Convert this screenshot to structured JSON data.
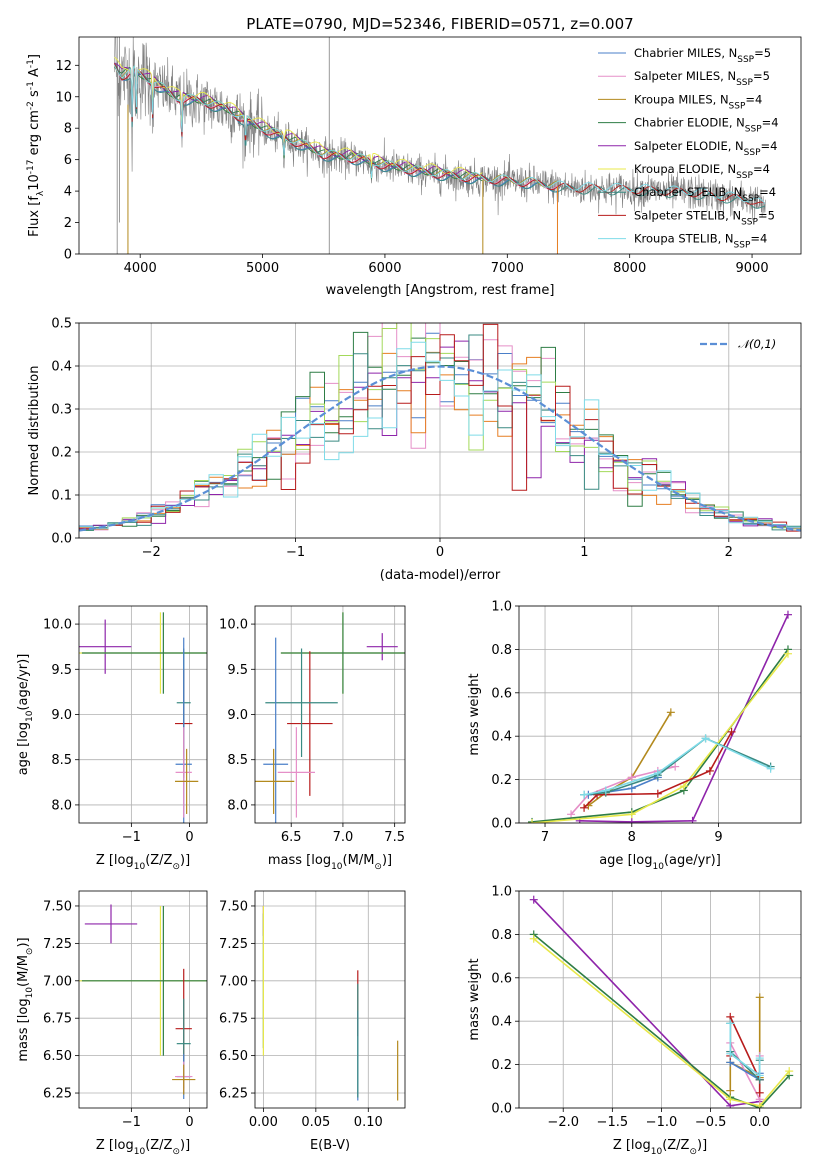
{
  "figure_title": "PLATE=0790, MJD=52346, FIBERID=0571, z=0.007",
  "colors": {
    "Chabrier MILES": "#4a7fc8",
    "Salpeter MILES": "#e58fc8",
    "Kroupa MILES": "#b38a1e",
    "Chabrier ELODIE": "#2e7d45",
    "Salpeter ELODIE": "#8e24aa",
    "Kroupa ELODIE": "#e8e84a",
    "Chabrier STELIB": "#3a8a82",
    "Salpeter STELIB": "#b71c1c",
    "Kroupa STELIB": "#7fdbe8",
    "hist_extra_orange": "#e67e22",
    "hist_extra_green": "#a3d95a",
    "data": "#808080",
    "gauss": "#5b8fd6"
  },
  "chart_data": [
    {
      "id": "spectrum",
      "type": "line",
      "xlabel": "wavelength [Angstrom, rest frame]",
      "ylabel": "Flux [f",
      "ylabel_rest": "10",
      "ylabel_exp": "-17",
      "ylabel_unit": " erg cm",
      "ylabel_unit_exp": "-2",
      "ylabel_s": " s",
      "ylabel_s_exp": "-1",
      "ylabel_A": " A",
      "ylabel_A_exp": "-1",
      "ylabel_close": "]",
      "xlim": [
        3500,
        9400
      ],
      "ylim": [
        0,
        13.8
      ],
      "xticks": [
        4000,
        5000,
        6000,
        7000,
        8000,
        9000
      ],
      "yticks": [
        0,
        2,
        4,
        6,
        8,
        10,
        12
      ],
      "legend_position": "upper right",
      "legend": [
        {
          "label": "Chabrier MILES, N",
          "sub": "SSP",
          "tail": "=5"
        },
        {
          "label": "Salpeter MILES, N",
          "sub": "SSP",
          "tail": "=5"
        },
        {
          "label": "Kroupa MILES, N",
          "sub": "SSP",
          "tail": "=4"
        },
        {
          "label": "Chabrier ELODIE, N",
          "sub": "SSP",
          "tail": "=4"
        },
        {
          "label": "Salpeter ELODIE, N",
          "sub": "SSP",
          "tail": "=4"
        },
        {
          "label": "Kroupa ELODIE, N",
          "sub": "SSP",
          "tail": "=4"
        },
        {
          "label": "Chabrier STELIB, N",
          "sub": "SSP",
          "tail": "=4"
        },
        {
          "label": "Salpeter STELIB, N",
          "sub": "SSP",
          "tail": "=5"
        },
        {
          "label": "Kroupa STELIB, N",
          "sub": "SSP",
          "tail": "=4"
        }
      ],
      "continuum": [
        [
          3790,
          12.0
        ],
        [
          3850,
          11.3
        ],
        [
          3950,
          11.6
        ],
        [
          4100,
          10.9
        ],
        [
          4300,
          9.9
        ],
        [
          4500,
          9.7
        ],
        [
          4700,
          9.2
        ],
        [
          4900,
          8.3
        ],
        [
          5100,
          7.6
        ],
        [
          5300,
          7.0
        ],
        [
          5500,
          6.3
        ],
        [
          5800,
          6.0
        ],
        [
          6000,
          5.6
        ],
        [
          6300,
          5.2
        ],
        [
          6600,
          4.9
        ],
        [
          6900,
          4.7
        ],
        [
          7200,
          4.5
        ],
        [
          7500,
          4.2
        ],
        [
          8000,
          4.1
        ],
        [
          8500,
          3.9
        ],
        [
          9000,
          3.4
        ],
        [
          9100,
          3.0
        ]
      ],
      "model_ranges": {
        "MILES": [
          3790,
          7410
        ],
        "ELODIE": [
          3790,
          6800
        ],
        "STELIB": [
          3790,
          9110
        ]
      }
    },
    {
      "id": "residual_hist",
      "type": "histogram",
      "xlabel": "(data-model)/error",
      "ylabel": "Normed distribution",
      "xlim": [
        -2.5,
        2.5
      ],
      "ylim": [
        0,
        0.5
      ],
      "xticks": [
        -2,
        -1,
        0,
        1,
        2
      ],
      "yticks": [
        0.0,
        0.1,
        0.2,
        0.3,
        0.4,
        0.5
      ],
      "legend_position": "upper right",
      "gauss_label": "𝒩(0,1)",
      "bins": {
        "start": -2.5,
        "width": 0.1,
        "count": 50
      }
    },
    {
      "id": "z_vs_age",
      "type": "errorbar",
      "xlabel": "Z [log",
      "xlabel_sub": "10",
      "xlabel_rest": "(Z/Z",
      "xlabel_sun": "⊙",
      "xlabel_close": ")]",
      "ylabel": "age  [log",
      "ylabel_sub": "10",
      "ylabel_rest": "(age/yr)]",
      "xlim": [
        -1.9,
        0.3
      ],
      "ylim": [
        7.8,
        10.2
      ],
      "xticks": [
        -1,
        0
      ],
      "yticks": [
        8.0,
        8.5,
        9.0,
        9.5,
        10.0
      ],
      "points": [
        {
          "s": "Salpeter ELODIE",
          "x": -1.45,
          "y": 9.75,
          "xerr": 0.45,
          "yerr": 0.3
        },
        {
          "s": "Kroupa ELODIE",
          "x": -0.5,
          "y": 9.68,
          "xerr": 1.4,
          "yerr": 0.45
        },
        {
          "s": "Chabrier ELODIE",
          "x": -0.45,
          "y": 9.68,
          "xerr": 1.4,
          "yerr": 0.45
        },
        {
          "s": "Salpeter STELIB",
          "x": -0.1,
          "y": 8.9,
          "xerr": 0.15,
          "yerr": 0.6
        },
        {
          "s": "Chabrier STELIB",
          "x": -0.1,
          "y": 9.13,
          "xerr": 0.12,
          "yerr": 0.6
        },
        {
          "s": "Chabrier MILES",
          "x": -0.1,
          "y": 8.45,
          "xerr": 0.14,
          "yerr": 1.4
        },
        {
          "s": "Salpeter MILES",
          "x": -0.1,
          "y": 8.36,
          "xerr": 0.14,
          "yerr": 0.5
        },
        {
          "s": "Kroupa MILES",
          "x": -0.05,
          "y": 8.26,
          "xerr": 0.2,
          "yerr": 0.36
        }
      ]
    },
    {
      "id": "mass_vs_age",
      "type": "errorbar",
      "xlabel": "mass [log",
      "xlabel_sub": "10",
      "xlabel_rest": "(M/M",
      "xlabel_sun": "⊙",
      "xlabel_close": ")]",
      "xlim": [
        6.15,
        7.6
      ],
      "ylim": [
        7.8,
        10.2
      ],
      "xticks": [
        6.5,
        7.0,
        7.5
      ],
      "yticks": [
        8.0,
        8.5,
        9.0,
        9.5,
        10.0
      ],
      "points": [
        {
          "s": "Salpeter ELODIE",
          "x": 7.38,
          "y": 9.75,
          "xerr": 0.15,
          "yerr": 0.15
        },
        {
          "s": "Kroupa ELODIE",
          "x": 7.0,
          "y": 9.68,
          "xerr": 0.6,
          "yerr": 0.45
        },
        {
          "s": "Chabrier ELODIE",
          "x": 7.0,
          "y": 9.68,
          "xerr": 0.6,
          "yerr": 0.45
        },
        {
          "s": "Salpeter STELIB",
          "x": 6.68,
          "y": 8.9,
          "xerr": 0.22,
          "yerr": 0.8
        },
        {
          "s": "Chabrier STELIB",
          "x": 6.6,
          "y": 9.13,
          "xerr": 0.35,
          "yerr": 0.6
        },
        {
          "s": "Chabrier MILES",
          "x": 6.35,
          "y": 8.45,
          "xerr": 0.12,
          "yerr": 1.4
        },
        {
          "s": "Salpeter MILES",
          "x": 6.55,
          "y": 8.36,
          "xerr": 0.18,
          "yerr": 0.5
        },
        {
          "s": "Kroupa MILES",
          "x": 6.33,
          "y": 8.26,
          "xerr": 0.2,
          "yerr": 0.36
        }
      ]
    },
    {
      "id": "weights_vs_age",
      "type": "line",
      "xlabel": "age  [log",
      "xlabel_sub": "10",
      "xlabel_rest": "(age/yr)]",
      "ylabel": "mass weight",
      "xlim": [
        6.7,
        9.95
      ],
      "ylim": [
        0,
        1
      ],
      "xticks": [
        7,
        8,
        9
      ],
      "yticks": [
        0.0,
        0.2,
        0.4,
        0.6,
        0.8,
        1.0
      ],
      "series": [
        {
          "s": "Kroupa MILES",
          "x": [
            7.5,
            7.7,
            8.0,
            8.45
          ],
          "y": [
            0.08,
            0.14,
            0.21,
            0.51
          ]
        },
        {
          "s": "Salpeter MILES",
          "x": [
            7.3,
            7.5,
            8.0,
            8.3,
            8.5
          ],
          "y": [
            0.04,
            0.13,
            0.21,
            0.24,
            0.26
          ]
        },
        {
          "s": "Chabrier MILES",
          "x": [
            7.5,
            8.0,
            8.3
          ],
          "y": [
            0.13,
            0.16,
            0.21
          ]
        },
        {
          "s": "Salpeter ELODIE",
          "x": [
            7.4,
            8.0,
            8.7,
            9.8
          ],
          "y": [
            0.01,
            0.005,
            0.01,
            0.96
          ]
        },
        {
          "s": "Chabrier ELODIE",
          "x": [
            6.85,
            8.0,
            8.6,
            9.8
          ],
          "y": [
            0.005,
            0.05,
            0.15,
            0.8
          ]
        },
        {
          "s": "Kroupa ELODIE",
          "x": [
            6.85,
            8.0,
            8.6,
            9.8
          ],
          "y": [
            0.0,
            0.04,
            0.17,
            0.78
          ]
        },
        {
          "s": "Salpeter STELIB",
          "x": [
            7.45,
            7.6,
            8.3,
            8.9,
            9.15
          ],
          "y": [
            0.07,
            0.13,
            0.135,
            0.24,
            0.42
          ]
        },
        {
          "s": "Chabrier STELIB",
          "x": [
            7.45,
            7.7,
            8.3,
            8.85,
            9.6
          ],
          "y": [
            0.13,
            0.14,
            0.22,
            0.39,
            0.26
          ]
        },
        {
          "s": "Kroupa STELIB",
          "x": [
            7.45,
            7.7,
            8.3,
            8.85,
            9.6
          ],
          "y": [
            0.13,
            0.15,
            0.23,
            0.39,
            0.25
          ]
        }
      ]
    },
    {
      "id": "z_vs_mass",
      "type": "errorbar",
      "xlabel": "Z [log",
      "xlabel_sub": "10",
      "xlabel_rest": "(Z/Z",
      "xlabel_sun": "⊙",
      "xlabel_close": ")]",
      "ylabel": "mass [log",
      "ylabel_sub": "10",
      "ylabel_rest": "(M/M",
      "ylabel_sun": "⊙",
      "ylabel_close": ")]",
      "xlim": [
        -1.9,
        0.3
      ],
      "ylim": [
        6.15,
        7.6
      ],
      "xticks": [
        -1,
        0
      ],
      "yticks": [
        6.25,
        6.5,
        6.75,
        7.0,
        7.25,
        7.5
      ],
      "points": [
        {
          "s": "Salpeter ELODIE",
          "x": -1.35,
          "y": 7.38,
          "xerr": 0.45,
          "yerr": 0.13
        },
        {
          "s": "Kroupa ELODIE",
          "x": -0.5,
          "y": 7.0,
          "xerr": 1.4,
          "yerr": 0.5
        },
        {
          "s": "Chabrier ELODIE",
          "x": -0.45,
          "y": 7.0,
          "xerr": 1.4,
          "yerr": 0.5
        },
        {
          "s": "Salpeter STELIB",
          "x": -0.1,
          "y": 6.68,
          "xerr": 0.14,
          "yerr": 0.4
        },
        {
          "s": "Chabrier STELIB",
          "x": -0.1,
          "y": 6.58,
          "xerr": 0.12,
          "yerr": 0.3
        },
        {
          "s": "Chabrier MILES",
          "x": -0.1,
          "y": 6.36,
          "xerr": 0.12,
          "yerr": 0.15
        },
        {
          "s": "Salpeter MILES",
          "x": -0.1,
          "y": 6.36,
          "xerr": 0.15,
          "yerr": 0.1
        },
        {
          "s": "Kroupa MILES",
          "x": -0.1,
          "y": 6.34,
          "xerr": 0.2,
          "yerr": 0.1
        }
      ]
    },
    {
      "id": "ebv_vs_mass",
      "type": "errorbar",
      "xlabel": "E(B-V)",
      "xlim": [
        -0.008,
        0.135
      ],
      "ylim": [
        6.15,
        7.6
      ],
      "xticks": [
        0.0,
        0.05,
        0.1
      ],
      "yticks": [
        6.25,
        6.5,
        6.75,
        7.0,
        7.25,
        7.5
      ],
      "points": [
        {
          "s": "Salpeter ELODIE",
          "x": 0.0,
          "y": 7.4,
          "xerr": 0,
          "yerr": 0.1
        },
        {
          "s": "Chabrier ELODIE",
          "x": 0.0,
          "y": 7.0,
          "xerr": 0,
          "yerr": 0.45
        },
        {
          "s": "Kroupa ELODIE",
          "x": 0.0,
          "y": 7.0,
          "xerr": 0,
          "yerr": 0.5
        },
        {
          "s": "Salpeter STELIB",
          "x": 0.09,
          "y": 6.85,
          "xerr": 0,
          "yerr": 0.22
        },
        {
          "s": "Chabrier MILES",
          "x": 0.09,
          "y": 6.5,
          "xerr": 0,
          "yerr": 0.3
        },
        {
          "s": "Chabrier STELIB",
          "x": 0.09,
          "y": 6.6,
          "xerr": 0,
          "yerr": 0.38
        },
        {
          "s": "Kroupa MILES",
          "x": 0.128,
          "y": 6.4,
          "xerr": 0,
          "yerr": 0.2
        }
      ]
    },
    {
      "id": "weights_vs_z",
      "type": "line",
      "xlabel": "Z [log",
      "xlabel_sub": "10",
      "xlabel_rest": "(Z/Z",
      "xlabel_sun": "⊙",
      "xlabel_close": ")]",
      "ylabel": "mass weight",
      "xlim": [
        -2.45,
        0.42
      ],
      "ylim": [
        0,
        1
      ],
      "xticks": [
        -2.0,
        -1.5,
        -1.0,
        -0.5,
        0.0
      ],
      "yticks": [
        0.0,
        0.2,
        0.4,
        0.6,
        0.8,
        1.0
      ],
      "series": [
        {
          "s": "Salpeter ELODIE",
          "x": [
            -2.3,
            -0.3,
            0.0
          ],
          "y": [
            0.96,
            0.01,
            0.03
          ]
        },
        {
          "s": "Chabrier ELODIE",
          "x": [
            -2.3,
            -0.3,
            0.0,
            0.3
          ],
          "y": [
            0.8,
            0.05,
            0.0,
            0.15
          ]
        },
        {
          "s": "Kroupa ELODIE",
          "x": [
            -2.3,
            -0.3,
            0.0,
            0.3
          ],
          "y": [
            0.78,
            0.04,
            0.01,
            0.17
          ]
        },
        {
          "s": "Kroupa MILES",
          "x": [
            -0.3,
            -0.3,
            0.0,
            0.0
          ],
          "y": [
            0.08,
            0.21,
            0.14,
            0.51
          ]
        },
        {
          "s": "Salpeter MILES",
          "x": [
            -0.3,
            -0.3,
            0.0,
            0.0
          ],
          "y": [
            0.26,
            0.3,
            0.04,
            0.24
          ]
        },
        {
          "s": "Chabrier MILES",
          "x": [
            -0.3,
            0.0,
            0.0
          ],
          "y": [
            0.21,
            0.13,
            0.16
          ]
        },
        {
          "s": "Salpeter STELIB",
          "x": [
            -0.3,
            -0.3,
            0.0,
            0.0
          ],
          "y": [
            0.24,
            0.42,
            0.13,
            0.07
          ]
        },
        {
          "s": "Chabrier STELIB",
          "x": [
            -0.3,
            -0.3,
            0.0,
            0.0
          ],
          "y": [
            0.39,
            0.26,
            0.13,
            0.22
          ]
        },
        {
          "s": "Kroupa STELIB",
          "x": [
            -0.3,
            -0.3,
            0.0,
            0.0
          ],
          "y": [
            0.39,
            0.25,
            0.15,
            0.23
          ]
        }
      ]
    }
  ]
}
